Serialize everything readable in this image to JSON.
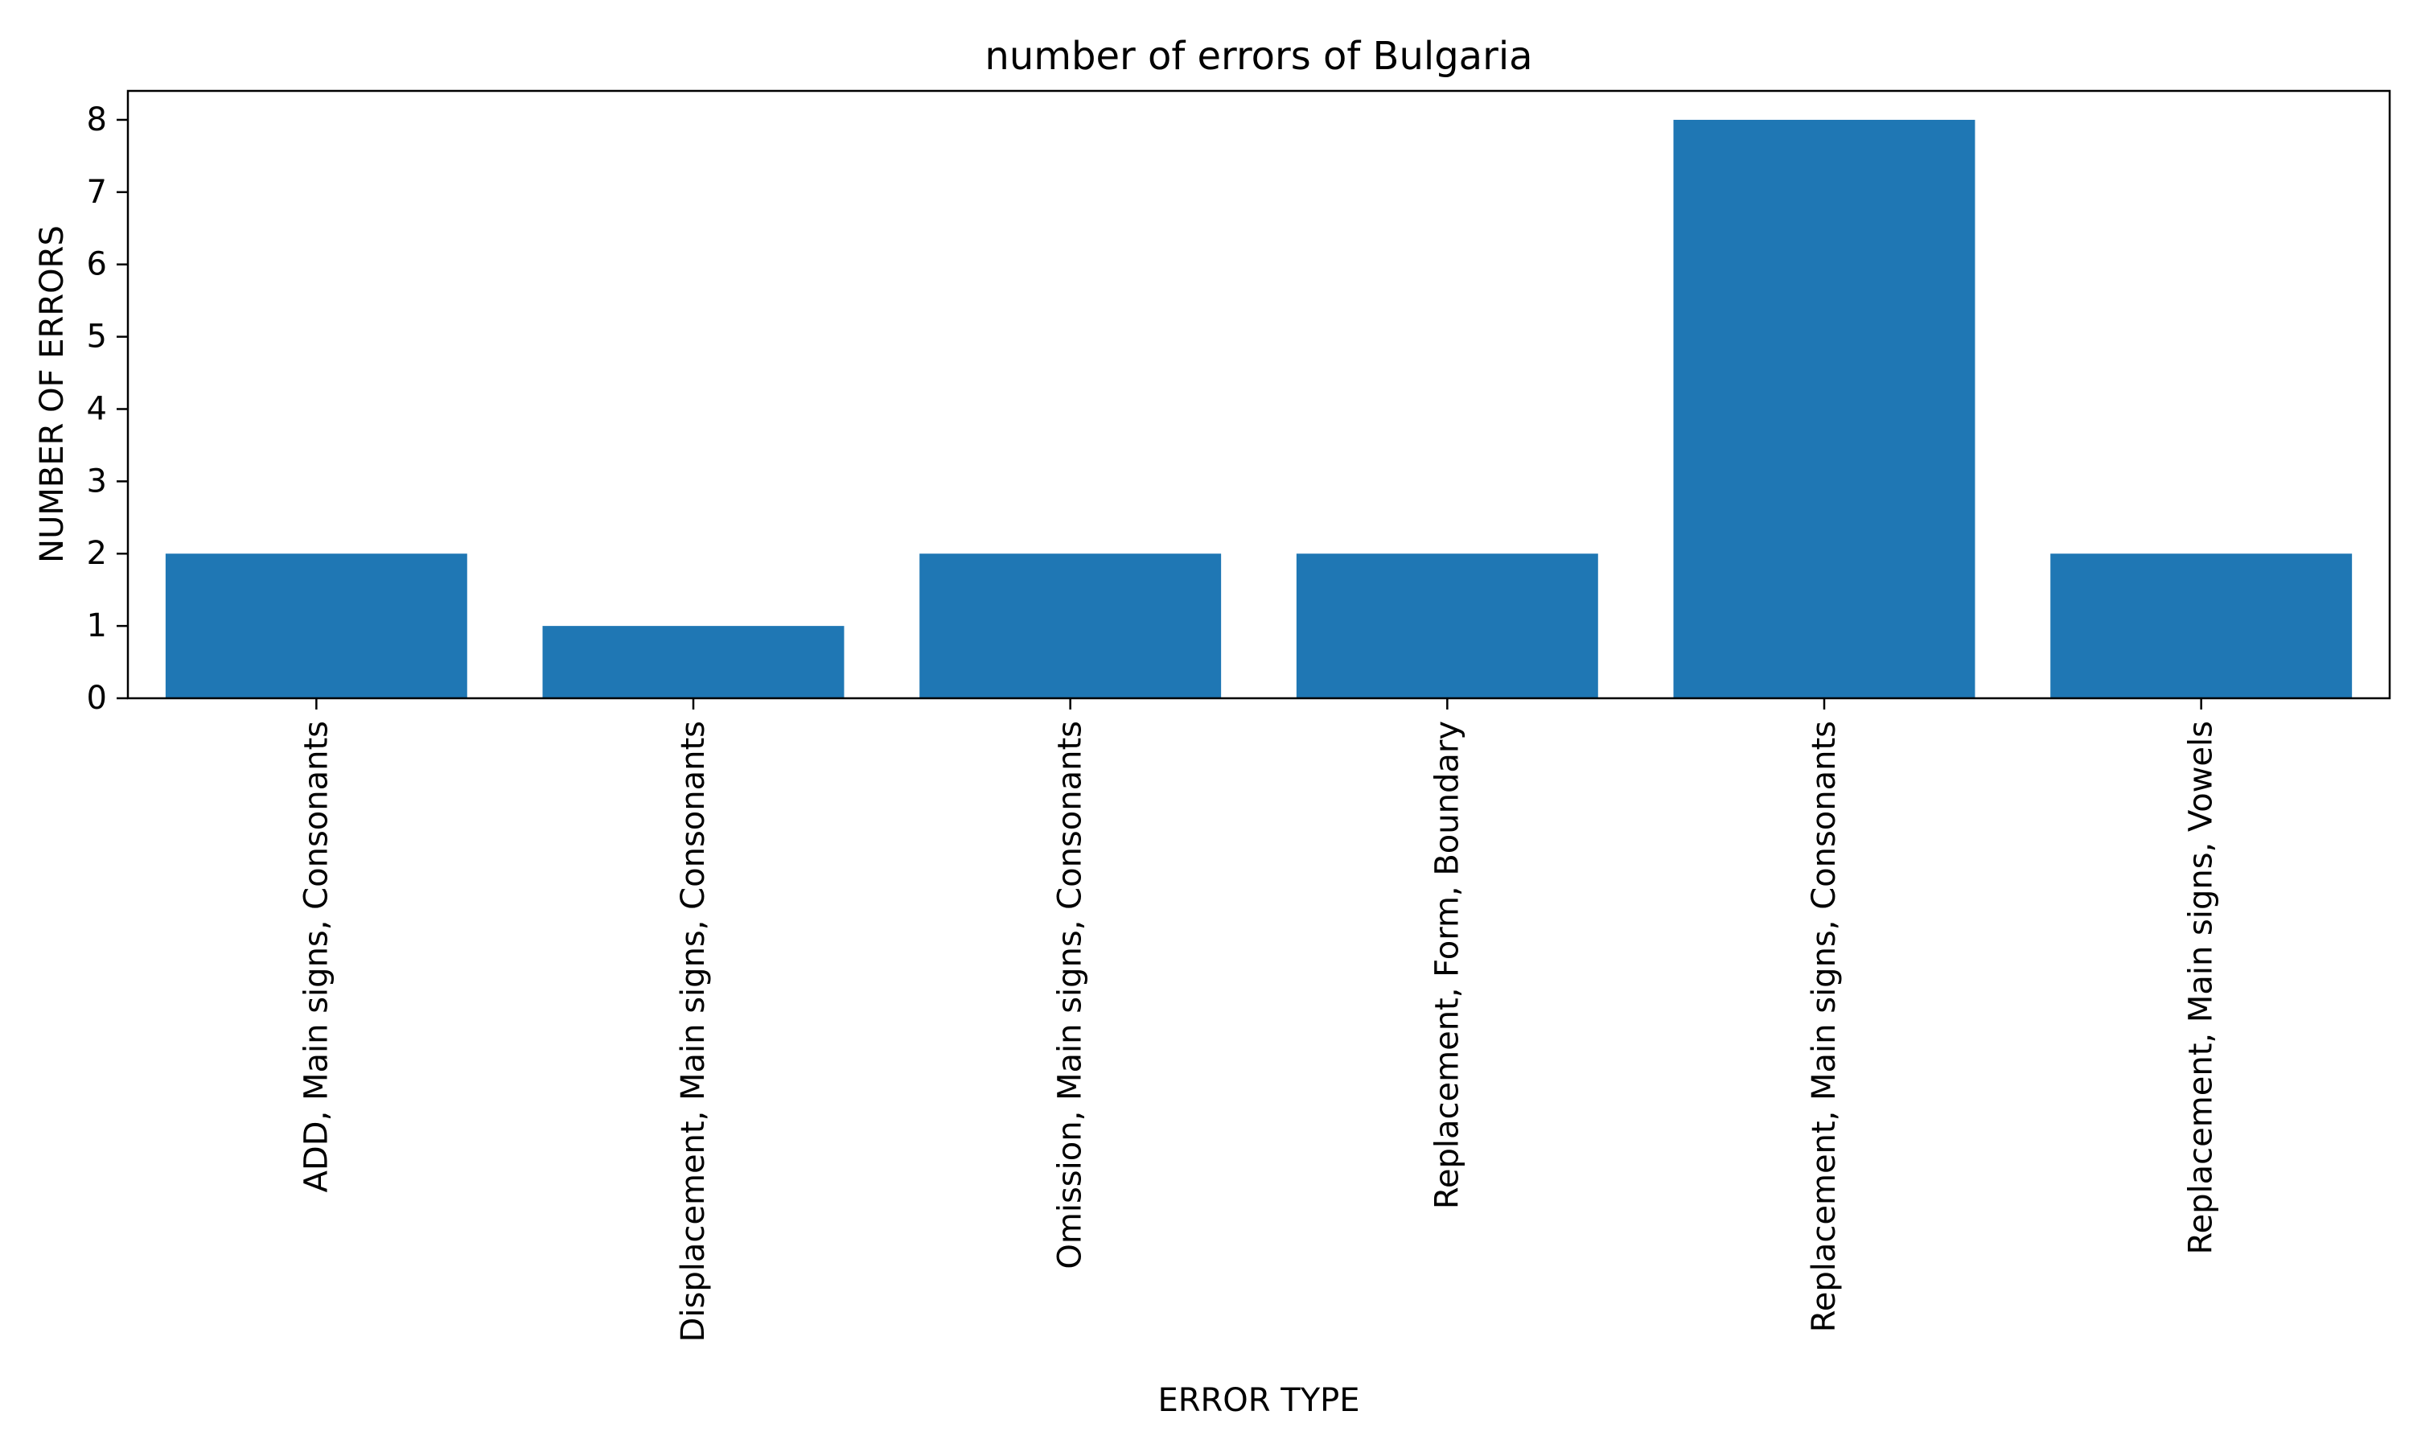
{
  "chart_data": {
    "type": "bar",
    "title": "number of errors of Bulgaria",
    "xlabel": "ERROR TYPE",
    "ylabel": "NUMBER OF ERRORS",
    "categories": [
      "ADD, Main signs, Consonants",
      "Displacement, Main signs, Consonants",
      "Omission, Main signs, Consonants",
      "Replacement, Form, Boundary",
      "Replacement, Main signs, Consonants",
      "Replacement, Main signs, Vowels"
    ],
    "values": [
      2,
      1,
      2,
      2,
      8,
      2
    ],
    "ylim": [
      0,
      8.4
    ],
    "yticks": [
      0,
      1,
      2,
      3,
      4,
      5,
      6,
      7,
      8
    ],
    "grid": false,
    "legend": "none",
    "bar_color": "#1f77b4"
  }
}
